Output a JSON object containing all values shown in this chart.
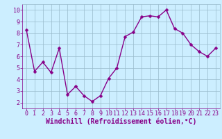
{
  "x": [
    0,
    1,
    2,
    3,
    4,
    5,
    6,
    7,
    8,
    9,
    10,
    11,
    12,
    13,
    14,
    15,
    16,
    17,
    18,
    19,
    20,
    21,
    22,
    23
  ],
  "y": [
    8.3,
    4.7,
    5.5,
    4.6,
    6.7,
    2.7,
    3.4,
    2.6,
    2.1,
    2.6,
    4.1,
    5.0,
    7.7,
    8.1,
    9.4,
    9.5,
    9.4,
    10.0,
    8.4,
    8.0,
    7.0,
    6.4,
    6.0,
    6.7
  ],
  "line_color": "#880088",
  "marker_color": "#880088",
  "bg_color": "#cceeff",
  "grid_color": "#99bbcc",
  "xlabel": "Windchill (Refroidissement éolien,°C)",
  "xlabel_color": "#880088",
  "ylim": [
    1.5,
    10.5
  ],
  "xlim": [
    -0.5,
    23.5
  ],
  "yticks": [
    2,
    3,
    4,
    5,
    6,
    7,
    8,
    9,
    10
  ],
  "xticks": [
    0,
    1,
    2,
    3,
    4,
    5,
    6,
    7,
    8,
    9,
    10,
    11,
    12,
    13,
    14,
    15,
    16,
    17,
    18,
    19,
    20,
    21,
    22,
    23
  ],
  "tick_label_fontsize": 6,
  "xlabel_fontsize": 7,
  "linewidth": 1.0,
  "markersize": 2.5
}
